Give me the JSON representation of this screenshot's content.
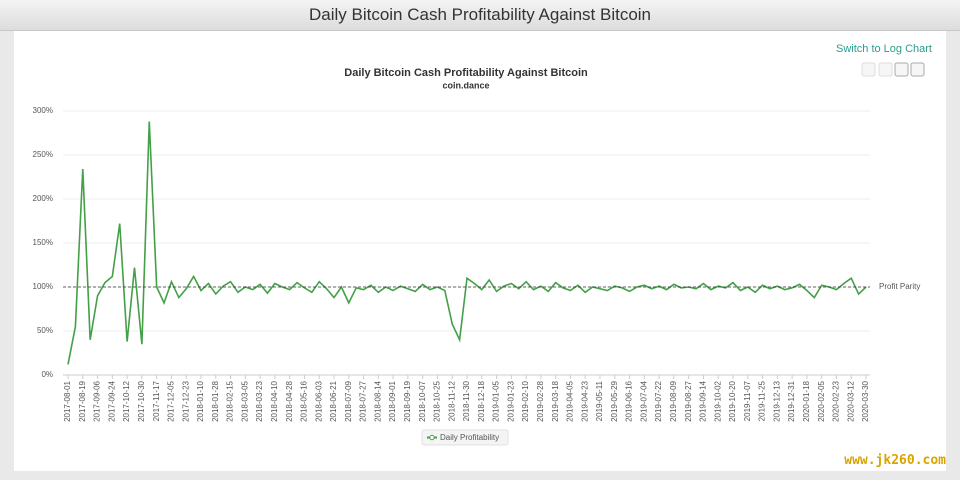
{
  "header": {
    "title": "Daily Bitcoin Cash Profitability Against Bitcoin"
  },
  "link": "Switch to Log Chart",
  "watermark": "www.jk260.com",
  "chart_data": {
    "type": "line",
    "title": "Daily Bitcoin Cash Profitability Against Bitcoin",
    "subtitle": "coin.dance",
    "categories": [
      "2017-08-01",
      null,
      "2017-08-19",
      null,
      "2017-09-06",
      null,
      "2017-09-24",
      null,
      "2017-10-12",
      null,
      "2017-10-30",
      null,
      "2017-11-17",
      null,
      "2017-12-05",
      null,
      "2017-12-23",
      null,
      "2018-01-10",
      null,
      "2018-01-28",
      null,
      "2018-02-15",
      null,
      "2018-03-05",
      null,
      "2018-03-23",
      null,
      "2018-04-10",
      null,
      "2018-04-28",
      null,
      "2018-05-16",
      null,
      "2018-06-03",
      null,
      "2018-06-21",
      null,
      "2018-07-09",
      null,
      "2018-07-27",
      null,
      "2018-08-14",
      null,
      "2018-09-01",
      null,
      "2018-09-19",
      null,
      "2018-10-07",
      null,
      "2018-10-25",
      null,
      "2018-11-12",
      null,
      "2018-11-30",
      null,
      "2018-12-18",
      null,
      "2019-01-05",
      null,
      "2019-01-23",
      null,
      "2019-02-10",
      null,
      "2019-02-28",
      null,
      "2019-03-18",
      null,
      "2019-04-05",
      null,
      "2019-04-23",
      null,
      "2019-05-11",
      null,
      "2019-05-29",
      null,
      "2019-06-16",
      null,
      "2019-07-04",
      null,
      "2019-07-22",
      null,
      "2019-08-09",
      null,
      "2019-08-27",
      null,
      "2019-09-14",
      null,
      "2019-10-02",
      null,
      "2019-10-20",
      null,
      "2019-11-07",
      null,
      "2019-11-25",
      null,
      "2019-12-13",
      null,
      "2019-12-31",
      null,
      "2020-01-18",
      null,
      "2020-02-05",
      null,
      "2020-02-23",
      null,
      "2020-03-12",
      null,
      "2020-03-30"
    ],
    "series": [
      {
        "name": "Daily Profitability",
        "color": "#43a047",
        "values": [
          12,
          55,
          234,
          40,
          90,
          105,
          112,
          172,
          38,
          122,
          35,
          288,
          100,
          82,
          106,
          88,
          98,
          112,
          96,
          104,
          92,
          101,
          106,
          94,
          100,
          97,
          103,
          93,
          104,
          100,
          97,
          105,
          99,
          94,
          106,
          98,
          88,
          100,
          82,
          99,
          97,
          102,
          94,
          100,
          96,
          101,
          98,
          95,
          103,
          97,
          100,
          96,
          58,
          40,
          110,
          104,
          97,
          108,
          95,
          101,
          104,
          98,
          106,
          97,
          101,
          95,
          105,
          99,
          96,
          102,
          94,
          100,
          98,
          96,
          101,
          99,
          95,
          100,
          102,
          98,
          101,
          97,
          103,
          99,
          100,
          98,
          104,
          97,
          101,
          99,
          105,
          96,
          100,
          94,
          102,
          98,
          101,
          97,
          99,
          103,
          96,
          88,
          102,
          100,
          97,
          104,
          110,
          92,
          100
        ]
      }
    ],
    "ylim": [
      0,
      300
    ],
    "yticks": [
      {
        "value": 0,
        "label": "0%"
      },
      {
        "value": 50,
        "label": "50%"
      },
      {
        "value": 100,
        "label": "100%"
      },
      {
        "value": 150,
        "label": "150%"
      },
      {
        "value": 200,
        "label": "200%"
      },
      {
        "value": 250,
        "label": "250%"
      },
      {
        "value": 300,
        "label": "300%"
      }
    ],
    "grid": true,
    "reference_line": {
      "value": 100,
      "label": "Profit Parity"
    },
    "legend": "bottom"
  }
}
